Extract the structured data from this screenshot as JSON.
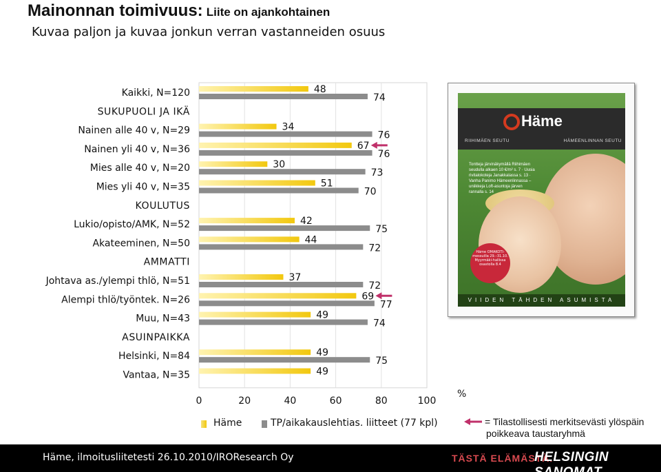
{
  "header": {
    "title": "Mainonnan toimivuus:",
    "title_suffix": "Liite on ajankohtainen",
    "subtitle": "Kuvaa paljon ja kuvaa jonkun verran vastanneiden osuus"
  },
  "chart_data": {
    "type": "bar",
    "orientation": "horizontal",
    "categories": [
      "Kaikki, N=120",
      "SUKUPUOLI JA IKÄ",
      "Nainen alle 40 v, N=29",
      "Nainen yli 40 v, N=36",
      "Mies alle 40 v, N=20",
      "Mies yli 40 v, N=35",
      "KOULUTUS",
      "Lukio/opisto/AMK, N=52",
      "Akateeminen, N=50",
      "AMMATTI",
      "Johtava as./ylempi thlö, N=51",
      "Alempi thlö/työntek. N=26",
      "Muu, N=43",
      "ASUINPAIKKA",
      "Helsinki, N=84",
      "Vantaa, N=35"
    ],
    "series": [
      {
        "name": "Häme",
        "color": "#f2c80f",
        "values": [
          48,
          null,
          34,
          67,
          30,
          51,
          null,
          42,
          44,
          null,
          37,
          69,
          49,
          null,
          49,
          49
        ]
      },
      {
        "name": "TP/aikakauslehtias. liitteet (77 kpl)",
        "color": "#8c8c8c",
        "values": [
          74,
          null,
          76,
          76,
          73,
          70,
          null,
          75,
          72,
          null,
          72,
          77,
          74,
          null,
          75,
          null
        ]
      }
    ],
    "significant": [
      {
        "category": "Nainen yli 40 v, N=36",
        "series": "Häme"
      },
      {
        "category": "Alempi thlö/työntek. N=26",
        "series": "Häme"
      }
    ],
    "xlim": [
      0,
      100
    ],
    "xticks": [
      0,
      20,
      40,
      60,
      80,
      100
    ],
    "xunit": "%",
    "grid": true
  },
  "cover": {
    "logo": "Häme",
    "region_left": "RIIHIMÄEN SEUTU",
    "region_right": "HÄMEENLINNAN SEUTU",
    "text": "Tontteja järvinäkymällä Riihimäen seudulla alkaen 10 €/m² s. 7 · Uusia rivitalokoteja Janakkalassa s. 13 · Vanha Panimo Hämeenlinnassa – uniikkeja Loft-asuntoja järven rannalla s. 14",
    "badge": "Häme OMAKOTI-messuilla 29.–31.10. Myyrmäki-hallissa osastolla 8.4",
    "bottom": "VIIDEN TÄHDEN ASUMISTA"
  },
  "legend": {
    "hame_label": "Häme",
    "tp_label": "TP/aikakauslehtias. liitteet (77 kpl)",
    "sig_line1": "= Tilastollisesti merkitsevästi ylöspäin",
    "sig_line2": "poikkeava taustaryhmä",
    "sig_color": "#c0306a"
  },
  "footer": {
    "source": "Häme, ilmoitusliitetesti 26.10.2010/IROResearch Oy",
    "tagline": "TÄSTÄ ELÄMÄSTÄ.",
    "brand": "HELSINGIN SANOMAT"
  }
}
